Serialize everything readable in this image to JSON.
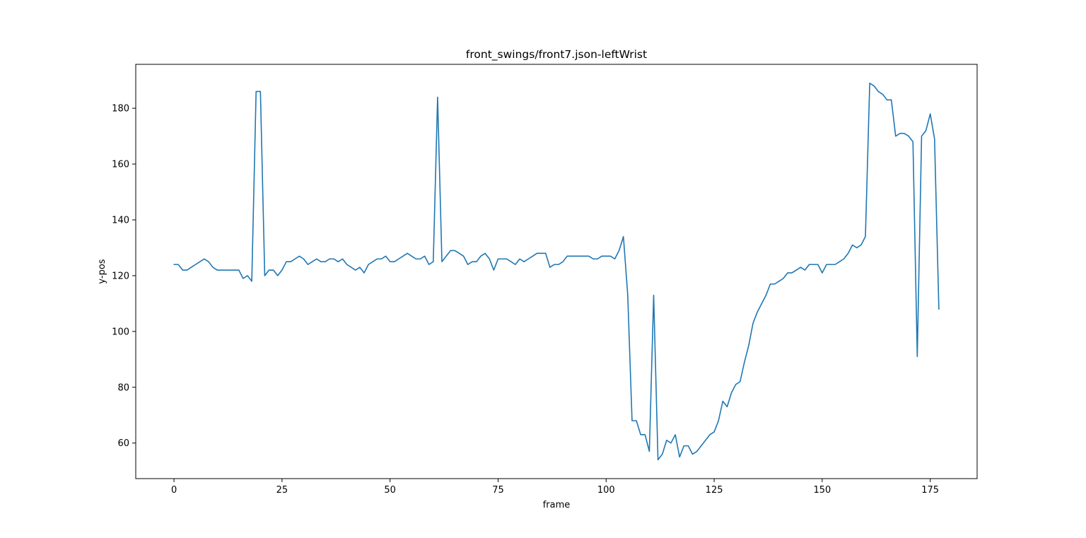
{
  "chart_data": {
    "type": "line",
    "title": "front_swings/front7.json-leftWrist",
    "xlabel": "frame",
    "ylabel": "y-pos",
    "xlim": [
      -8.85,
      185.85
    ],
    "ylim": [
      47.25,
      195.75
    ],
    "xticks": [
      0,
      25,
      50,
      75,
      100,
      125,
      150,
      175
    ],
    "yticks": [
      60,
      80,
      100,
      120,
      140,
      160,
      180
    ],
    "grid": false,
    "line_color": "#1f77b4",
    "series": [
      {
        "values": [
          124,
          124,
          122,
          122,
          123,
          124,
          125,
          126,
          125,
          123,
          122,
          122,
          122,
          122,
          122,
          122,
          119,
          120,
          118,
          186,
          186,
          120,
          122,
          122,
          120,
          122,
          125,
          125,
          126,
          127,
          126,
          124,
          125,
          126,
          125,
          125,
          126,
          126,
          125,
          126,
          124,
          123,
          122,
          123,
          121,
          124,
          125,
          126,
          126,
          127,
          125,
          125,
          126,
          127,
          128,
          127,
          126,
          126,
          127,
          124,
          125,
          184,
          125,
          127,
          129,
          129,
          128,
          127,
          124,
          125,
          125,
          127,
          128,
          126,
          122,
          126,
          126,
          126,
          125,
          124,
          126,
          125,
          126,
          127,
          128,
          128,
          128,
          123,
          124,
          124,
          125,
          127,
          127,
          127,
          127,
          127,
          127,
          126,
          126,
          127,
          127,
          127,
          126,
          129,
          134,
          113,
          68,
          68,
          63,
          63,
          57,
          113,
          54,
          56,
          61,
          60,
          63,
          55,
          59,
          59,
          56,
          57,
          59,
          61,
          63,
          64,
          68,
          75,
          73,
          78,
          81,
          82,
          89,
          95,
          103,
          107,
          110,
          113,
          117,
          117,
          118,
          119,
          121,
          121,
          122,
          123,
          122,
          124,
          124,
          124,
          121,
          124,
          124,
          124,
          125,
          126,
          128,
          131,
          130,
          131,
          134,
          189,
          188,
          186,
          185,
          183,
          183,
          170,
          171,
          171,
          170,
          168,
          91,
          170,
          172,
          178,
          169,
          108
        ]
      }
    ]
  }
}
